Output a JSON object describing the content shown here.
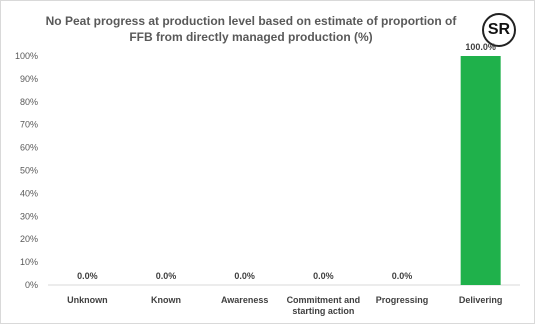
{
  "title_lines": [
    "No Peat progress at production level based on estimate of proportion of",
    "FFB from directly managed production (%)"
  ],
  "logo_text": "SR",
  "chart_data": {
    "type": "bar",
    "title": "No Peat progress at production level based on estimate of proportion of FFB from directly managed production (%)",
    "categories": [
      "Unknown",
      "Known",
      "Awareness",
      "Commitment and starting action",
      "Progressing",
      "Delivering"
    ],
    "category_lines": [
      [
        "Unknown"
      ],
      [
        "Known"
      ],
      [
        "Awareness"
      ],
      [
        "Commitment and",
        "starting action"
      ],
      [
        "Progressing"
      ],
      [
        "Delivering"
      ]
    ],
    "values": [
      0.0,
      0.0,
      0.0,
      0.0,
      0.0,
      100.0
    ],
    "data_labels": [
      "0.0%",
      "0.0%",
      "0.0%",
      "0.0%",
      "0.0%",
      "100.0%"
    ],
    "yticks": [
      "0%",
      "10%",
      "20%",
      "30%",
      "40%",
      "50%",
      "60%",
      "70%",
      "80%",
      "90%",
      "100%"
    ],
    "ylim": [
      0,
      100
    ],
    "grid": false,
    "legend": "none",
    "bar_color": "#1fb14b"
  }
}
